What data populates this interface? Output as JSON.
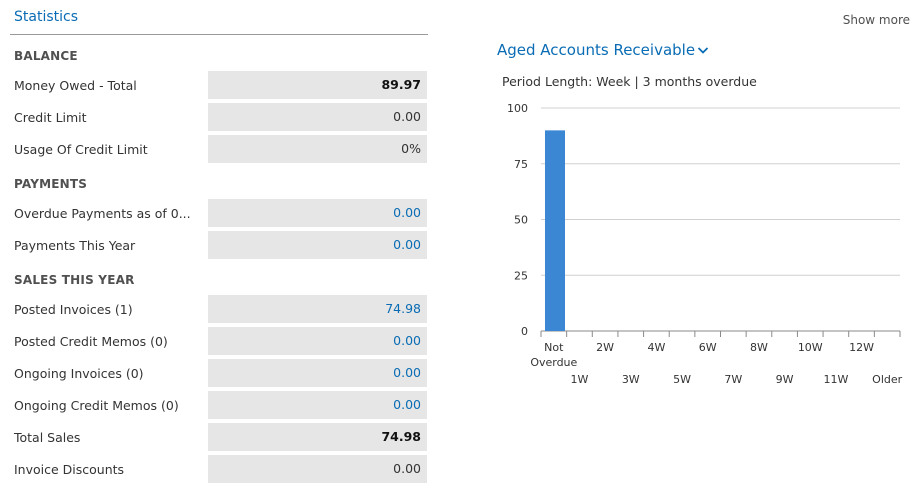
{
  "header": {
    "title": "Statistics",
    "show_more": "Show more"
  },
  "sections": {
    "balance": {
      "title": "BALANCE",
      "rows": [
        {
          "label": "Money Owed - Total",
          "value": "89.97"
        },
        {
          "label": "Credit Limit",
          "value": "0.00"
        },
        {
          "label": "Usage Of Credit Limit",
          "value": "0%"
        }
      ]
    },
    "payments": {
      "title": "PAYMENTS",
      "rows": [
        {
          "label": "Overdue Payments as of 0...",
          "value": "0.00"
        },
        {
          "label": "Payments This Year",
          "value": "0.00"
        }
      ]
    },
    "sales": {
      "title": "SALES THIS YEAR",
      "rows": [
        {
          "label": "Posted Invoices (1)",
          "value": "74.98"
        },
        {
          "label": "Posted Credit Memos (0)",
          "value": "0.00"
        },
        {
          "label": "Ongoing Invoices (0)",
          "value": "0.00"
        },
        {
          "label": "Ongoing Credit Memos (0)",
          "value": "0.00"
        },
        {
          "label": "Total Sales",
          "value": "74.98"
        },
        {
          "label": "Invoice Discounts",
          "value": "0.00"
        }
      ]
    }
  },
  "chart": {
    "title": "Aged Accounts Receivable",
    "period_text": "Period Length: Week | 3 months overdue",
    "chevron_icon": "chevron-down-icon",
    "bar_color": "#3b87d4",
    "link_color": "#0a6cb4"
  },
  "chart_data": {
    "type": "bar",
    "title": "Aged Accounts Receivable",
    "categories": [
      "Not Overdue",
      "1W",
      "2W",
      "3W",
      "4W",
      "5W",
      "6W",
      "7W",
      "8W",
      "9W",
      "10W",
      "11W",
      "12W",
      "Older"
    ],
    "values": [
      89.97,
      0,
      0,
      0,
      0,
      0,
      0,
      0,
      0,
      0,
      0,
      0,
      0,
      0
    ],
    "ylim": [
      0,
      100
    ],
    "yticks": [
      0,
      25,
      50,
      75,
      100
    ],
    "grid": true
  }
}
